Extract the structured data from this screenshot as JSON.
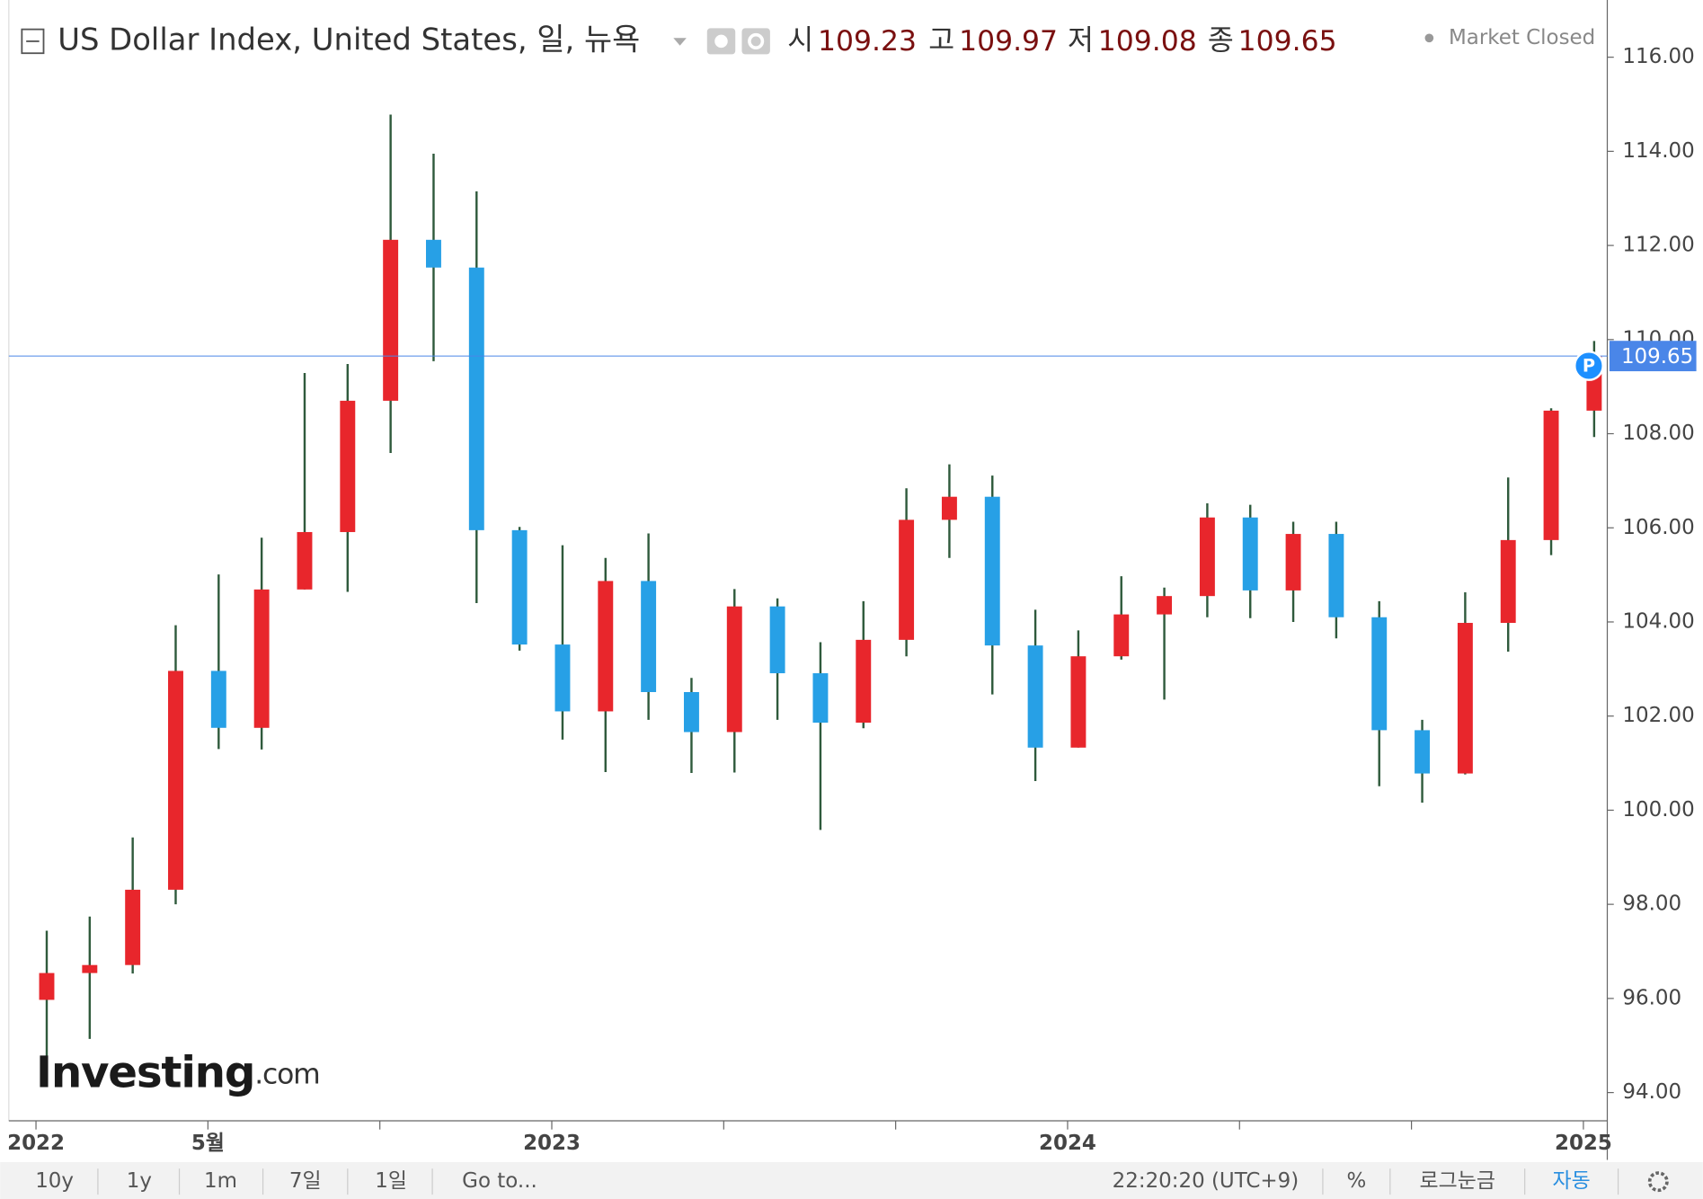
{
  "chart_data": {
    "type": "candlestick",
    "title": "US Dollar Index, United States, 일, 뉴욕",
    "status": "Market Closed",
    "quote": [
      {
        "label": "시",
        "value": 109.23
      },
      {
        "label": "고",
        "value": 109.97
      },
      {
        "label": "저",
        "value": 109.08
      },
      {
        "label": "종",
        "value": 109.65
      }
    ],
    "x": [
      "2022-01",
      "2022-02",
      "2022-03",
      "2022-04",
      "2022-05",
      "2022-06",
      "2022-07",
      "2022-08",
      "2022-09",
      "2022-10",
      "2022-11",
      "2022-12",
      "2023-01",
      "2023-02",
      "2023-03",
      "2023-04",
      "2023-05",
      "2023-06",
      "2023-07",
      "2023-08",
      "2023-09",
      "2023-10",
      "2023-11",
      "2023-12",
      "2024-01",
      "2024-02",
      "2024-03",
      "2024-04",
      "2024-05",
      "2024-06",
      "2024-07",
      "2024-08",
      "2024-09",
      "2024-10",
      "2024-11",
      "2024-12",
      "2025-01"
    ],
    "open": [
      95.97,
      96.54,
      96.71,
      98.31,
      102.96,
      101.75,
      104.69,
      105.91,
      108.7,
      112.12,
      111.53,
      105.95,
      103.52,
      102.1,
      104.87,
      102.51,
      101.66,
      104.33,
      102.91,
      101.86,
      103.62,
      106.17,
      106.66,
      103.5,
      101.33,
      103.27,
      104.16,
      104.55,
      106.22,
      104.67,
      105.87,
      104.1,
      101.7,
      100.78,
      103.98,
      105.74,
      108.49
    ],
    "high": [
      97.44,
      97.74,
      99.42,
      103.93,
      105.01,
      105.79,
      109.29,
      109.48,
      114.78,
      113.95,
      113.15,
      106.02,
      105.63,
      105.36,
      105.88,
      102.81,
      104.7,
      104.5,
      103.57,
      104.44,
      106.84,
      107.35,
      107.11,
      104.26,
      103.82,
      104.97,
      104.73,
      106.52,
      106.49,
      106.13,
      106.13,
      104.44,
      101.92,
      104.63,
      107.07,
      108.54,
      109.97
    ],
    "low": [
      94.63,
      95.14,
      96.53,
      98.0,
      101.3,
      101.29,
      104.69,
      104.64,
      107.59,
      109.54,
      104.4,
      103.39,
      101.5,
      100.81,
      101.92,
      100.79,
      100.8,
      101.92,
      99.58,
      101.74,
      103.27,
      105.36,
      102.46,
      100.62,
      101.33,
      103.2,
      102.35,
      104.1,
      104.08,
      104.0,
      103.65,
      100.51,
      100.16,
      100.76,
      103.37,
      105.42,
      107.93
    ],
    "close": [
      96.54,
      96.71,
      98.31,
      102.96,
      101.75,
      104.69,
      105.91,
      108.7,
      112.12,
      111.53,
      105.95,
      103.52,
      102.1,
      104.87,
      102.51,
      101.66,
      104.33,
      102.91,
      101.86,
      103.62,
      106.17,
      106.66,
      103.5,
      101.33,
      103.27,
      104.16,
      104.55,
      106.22,
      104.67,
      105.87,
      104.1,
      101.7,
      100.78,
      103.98,
      105.74,
      108.49,
      109.65
    ],
    "colors": {
      "up": "#e8262c",
      "down": "#27a0e6",
      "wick": "#2f5a3c"
    },
    "last_price": {
      "value": 109.65,
      "marker": "P",
      "color": "#4a86e8"
    },
    "ylim": [
      93.4,
      117.1
    ],
    "yticks": [
      {
        "value": 94,
        "label": "94.00"
      },
      {
        "value": 96,
        "label": "96.00"
      },
      {
        "value": 98,
        "label": "98.00"
      },
      {
        "value": 100,
        "label": "100.00"
      },
      {
        "value": 102,
        "label": "102.00"
      },
      {
        "value": 104,
        "label": "104.00"
      },
      {
        "value": 106,
        "label": "106.00"
      },
      {
        "value": 108,
        "label": "108.00"
      },
      {
        "value": 110,
        "label": "110.00"
      },
      {
        "value": 112,
        "label": "112.00"
      },
      {
        "value": 114,
        "label": "114.00"
      },
      {
        "value": 116,
        "label": "116.00"
      }
    ],
    "xticks": [
      {
        "value": "2022-01",
        "label": "2022"
      },
      {
        "value": "2022-05",
        "label": "5월"
      },
      {
        "value": "2022-09",
        "label": null
      },
      {
        "value": "2023-01",
        "label": "2023"
      },
      {
        "value": "2023-05",
        "label": null
      },
      {
        "value": "2023-09",
        "label": null
      },
      {
        "value": "2024-01",
        "label": "2024"
      },
      {
        "value": "2024-05",
        "label": null
      },
      {
        "value": "2024-09",
        "label": null
      },
      {
        "value": "2025-01",
        "label": "2025"
      }
    ],
    "watermark": "Investing",
    "watermark_suffix": ".com"
  },
  "toolbar": {
    "ranges": [
      "10y",
      "1y",
      "1m",
      "7일",
      "1일"
    ],
    "goto": "Go to...",
    "clock": "22:20:20 (UTC+9)",
    "percent": "%",
    "log": "로그눈금",
    "auto": "자동"
  }
}
